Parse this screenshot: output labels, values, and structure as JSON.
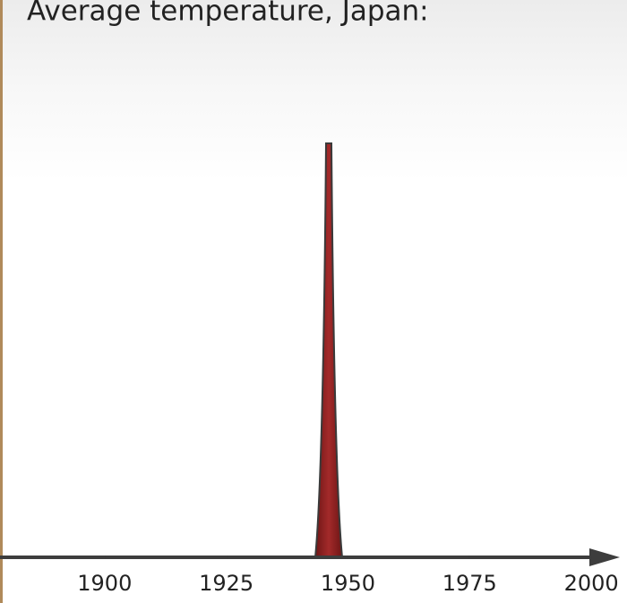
{
  "chart_data": {
    "type": "line",
    "title": "Average temperature, Japan:",
    "xlim": [
      1878.5,
      2005.5
    ],
    "xticks": [
      1900,
      1925,
      1950,
      1975,
      2000
    ]
  }
}
